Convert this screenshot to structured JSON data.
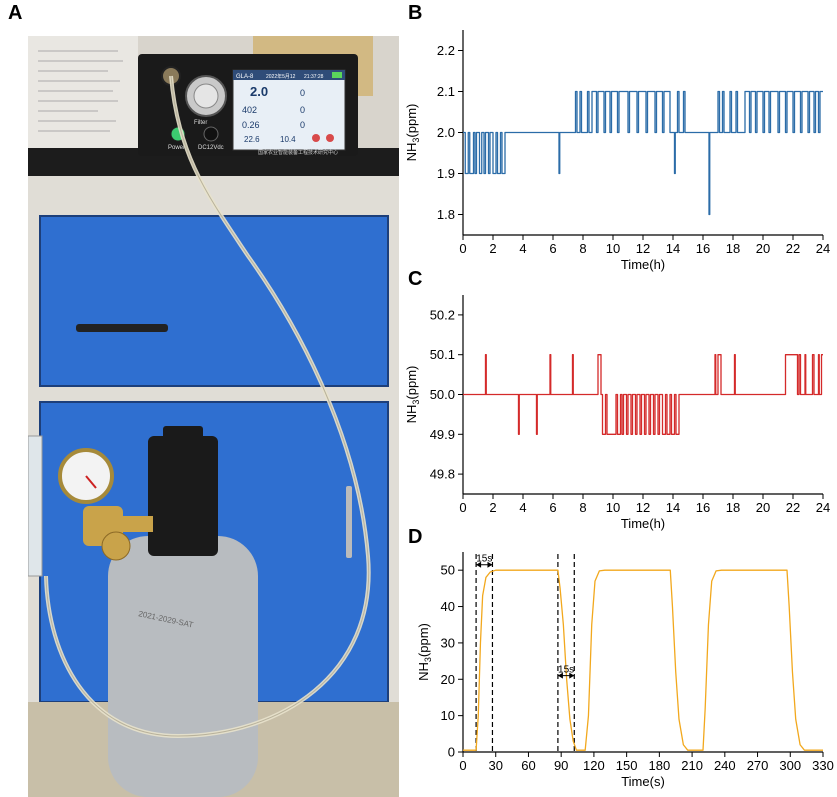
{
  "panels": {
    "a": "A",
    "b": "B",
    "c": "C",
    "d": "D"
  },
  "photo": {
    "screen_title": "GLA-8",
    "screen_date": "2022年5月12",
    "screen_time": "21:37:28",
    "main_value": "2.0",
    "co2_value": "402",
    "value_2": "0.26",
    "temp": "22.6",
    "humidity": "10.4",
    "filter_label": "Filter",
    "power_label": "Power",
    "dc_label": "DC12Vdc",
    "footer_cn": "国家农业智能装备工程技术研究中心",
    "cylinder_text": "2021-2029-SAT"
  },
  "chart_data": [
    {
      "panel": "B",
      "type": "line",
      "xlabel": "Time(h)",
      "ylabel": "NH3(ppm)",
      "ylabel_main": "NH",
      "ylabel_sub": "3",
      "ylabel_tail": "(ppm)",
      "xlim": [
        0,
        24
      ],
      "ylim": [
        1.75,
        2.25
      ],
      "xticks": [
        "0",
        "2",
        "4",
        "6",
        "8",
        "10",
        "12",
        "14",
        "16",
        "18",
        "20",
        "22",
        "24"
      ],
      "yticks": [
        "1.8",
        "1.9",
        "2.0",
        "2.1",
        "2.2"
      ],
      "color": "#2b6ca8",
      "segments": [
        [
          0.0,
          2.0
        ],
        [
          0.15,
          2.0
        ],
        [
          0.15,
          1.9
        ],
        [
          0.35,
          1.9
        ],
        [
          0.35,
          2.0
        ],
        [
          0.45,
          2.0
        ],
        [
          0.45,
          1.9
        ],
        [
          0.7,
          1.9
        ],
        [
          0.7,
          2.0
        ],
        [
          0.8,
          2.0
        ],
        [
          0.8,
          1.9
        ],
        [
          0.9,
          1.9
        ],
        [
          0.9,
          2.0
        ],
        [
          1.1,
          2.0
        ],
        [
          1.1,
          1.9
        ],
        [
          1.25,
          1.9
        ],
        [
          1.25,
          2.0
        ],
        [
          1.4,
          2.0
        ],
        [
          1.4,
          1.9
        ],
        [
          1.5,
          1.9
        ],
        [
          1.5,
          2.0
        ],
        [
          1.7,
          2.0
        ],
        [
          1.7,
          1.9
        ],
        [
          1.8,
          1.9
        ],
        [
          1.8,
          2.0
        ],
        [
          2.0,
          2.0
        ],
        [
          2.0,
          1.9
        ],
        [
          2.2,
          1.9
        ],
        [
          2.2,
          2.0
        ],
        [
          2.3,
          2.0
        ],
        [
          2.3,
          1.9
        ],
        [
          2.5,
          1.9
        ],
        [
          2.5,
          2.0
        ],
        [
          2.6,
          2.0
        ],
        [
          2.6,
          1.9
        ],
        [
          2.8,
          1.9
        ],
        [
          2.8,
          2.0
        ],
        [
          6.4,
          2.0
        ],
        [
          6.4,
          1.9
        ],
        [
          6.45,
          1.9
        ],
        [
          6.45,
          2.0
        ],
        [
          7.5,
          2.0
        ],
        [
          7.5,
          2.1
        ],
        [
          7.6,
          2.1
        ],
        [
          7.6,
          2.0
        ],
        [
          7.8,
          2.0
        ],
        [
          7.8,
          2.1
        ],
        [
          7.9,
          2.1
        ],
        [
          7.9,
          2.0
        ],
        [
          8.3,
          2.0
        ],
        [
          8.3,
          2.1
        ],
        [
          8.4,
          2.1
        ],
        [
          8.4,
          2.0
        ],
        [
          8.6,
          2.0
        ],
        [
          8.6,
          2.1
        ],
        [
          8.9,
          2.1
        ],
        [
          8.9,
          2.0
        ],
        [
          9.0,
          2.0
        ],
        [
          9.0,
          2.1
        ],
        [
          9.4,
          2.1
        ],
        [
          9.4,
          2.0
        ],
        [
          9.5,
          2.0
        ],
        [
          9.5,
          2.1
        ],
        [
          9.8,
          2.1
        ],
        [
          9.8,
          2.0
        ],
        [
          9.9,
          2.0
        ],
        [
          9.9,
          2.1
        ],
        [
          10.3,
          2.1
        ],
        [
          10.3,
          2.0
        ],
        [
          10.4,
          2.0
        ],
        [
          10.4,
          2.1
        ],
        [
          11.0,
          2.1
        ],
        [
          11.0,
          2.0
        ],
        [
          11.1,
          2.0
        ],
        [
          11.1,
          2.1
        ],
        [
          11.6,
          2.1
        ],
        [
          11.6,
          2.0
        ],
        [
          11.7,
          2.0
        ],
        [
          11.7,
          2.1
        ],
        [
          12.2,
          2.1
        ],
        [
          12.2,
          2.0
        ],
        [
          12.3,
          2.0
        ],
        [
          12.3,
          2.1
        ],
        [
          12.8,
          2.1
        ],
        [
          12.8,
          2.0
        ],
        [
          12.9,
          2.0
        ],
        [
          12.9,
          2.1
        ],
        [
          13.3,
          2.1
        ],
        [
          13.3,
          2.0
        ],
        [
          13.4,
          2.0
        ],
        [
          13.4,
          2.1
        ],
        [
          13.8,
          2.1
        ],
        [
          13.8,
          2.0
        ],
        [
          14.1,
          2.0
        ],
        [
          14.1,
          1.9
        ],
        [
          14.15,
          1.9
        ],
        [
          14.15,
          2.0
        ],
        [
          14.3,
          2.0
        ],
        [
          14.3,
          2.1
        ],
        [
          14.4,
          2.1
        ],
        [
          14.4,
          2.0
        ],
        [
          14.7,
          2.0
        ],
        [
          14.7,
          2.1
        ],
        [
          14.8,
          2.1
        ],
        [
          14.8,
          2.0
        ],
        [
          16.4,
          2.0
        ],
        [
          16.4,
          1.8
        ],
        [
          16.45,
          1.8
        ],
        [
          16.45,
          2.0
        ],
        [
          17.0,
          2.0
        ],
        [
          17.0,
          2.1
        ],
        [
          17.1,
          2.1
        ],
        [
          17.1,
          2.0
        ],
        [
          17.3,
          2.0
        ],
        [
          17.3,
          2.1
        ],
        [
          17.4,
          2.1
        ],
        [
          17.4,
          2.0
        ],
        [
          17.8,
          2.0
        ],
        [
          17.8,
          2.1
        ],
        [
          17.9,
          2.1
        ],
        [
          17.9,
          2.0
        ],
        [
          18.2,
          2.0
        ],
        [
          18.2,
          2.1
        ],
        [
          18.3,
          2.1
        ],
        [
          18.3,
          2.0
        ],
        [
          18.8,
          2.0
        ],
        [
          18.8,
          2.1
        ],
        [
          19.1,
          2.1
        ],
        [
          19.1,
          2.0
        ],
        [
          19.2,
          2.0
        ],
        [
          19.2,
          2.1
        ],
        [
          19.5,
          2.1
        ],
        [
          19.5,
          2.0
        ],
        [
          19.6,
          2.0
        ],
        [
          19.6,
          2.1
        ],
        [
          20.0,
          2.1
        ],
        [
          20.0,
          2.0
        ],
        [
          20.1,
          2.0
        ],
        [
          20.1,
          2.1
        ],
        [
          20.4,
          2.1
        ],
        [
          20.4,
          2.0
        ],
        [
          20.5,
          2.0
        ],
        [
          20.5,
          2.1
        ],
        [
          21.0,
          2.1
        ],
        [
          21.0,
          2.0
        ],
        [
          21.1,
          2.0
        ],
        [
          21.1,
          2.1
        ],
        [
          21.5,
          2.1
        ],
        [
          21.5,
          2.0
        ],
        [
          21.6,
          2.0
        ],
        [
          21.6,
          2.1
        ],
        [
          22.0,
          2.1
        ],
        [
          22.0,
          2.0
        ],
        [
          22.1,
          2.0
        ],
        [
          22.1,
          2.1
        ],
        [
          22.5,
          2.1
        ],
        [
          22.5,
          2.0
        ],
        [
          22.6,
          2.0
        ],
        [
          22.6,
          2.1
        ],
        [
          23.0,
          2.1
        ],
        [
          23.0,
          2.0
        ],
        [
          23.1,
          2.0
        ],
        [
          23.1,
          2.1
        ],
        [
          23.4,
          2.1
        ],
        [
          23.4,
          2.0
        ],
        [
          23.5,
          2.0
        ],
        [
          23.5,
          2.1
        ],
        [
          23.7,
          2.1
        ],
        [
          23.7,
          2.0
        ],
        [
          23.8,
          2.0
        ],
        [
          23.8,
          2.1
        ],
        [
          24.0,
          2.1
        ]
      ]
    },
    {
      "panel": "C",
      "type": "line",
      "xlabel": "Time(h)",
      "ylabel": "NH3(ppm)",
      "ylabel_main": "NH",
      "ylabel_sub": "3",
      "ylabel_tail": "(ppm)",
      "xlim": [
        0,
        24
      ],
      "ylim": [
        49.75,
        50.25
      ],
      "xticks": [
        "0",
        "2",
        "4",
        "6",
        "8",
        "10",
        "12",
        "14",
        "16",
        "18",
        "20",
        "22",
        "24"
      ],
      "yticks": [
        "49.8",
        "49.9",
        "50.0",
        "50.1",
        "50.2"
      ],
      "color": "#d42a2a",
      "segments": [
        [
          0.0,
          50.0
        ],
        [
          1.5,
          50.0
        ],
        [
          1.5,
          50.1
        ],
        [
          1.55,
          50.1
        ],
        [
          1.55,
          50.0
        ],
        [
          3.7,
          50.0
        ],
        [
          3.7,
          49.9
        ],
        [
          3.75,
          49.9
        ],
        [
          3.75,
          50.0
        ],
        [
          4.9,
          50.0
        ],
        [
          4.9,
          49.9
        ],
        [
          4.95,
          49.9
        ],
        [
          4.95,
          50.0
        ],
        [
          5.8,
          50.0
        ],
        [
          5.8,
          50.1
        ],
        [
          5.85,
          50.1
        ],
        [
          5.85,
          50.0
        ],
        [
          7.3,
          50.0
        ],
        [
          7.3,
          50.1
        ],
        [
          7.35,
          50.1
        ],
        [
          7.35,
          50.0
        ],
        [
          9.0,
          50.0
        ],
        [
          9.0,
          50.1
        ],
        [
          9.2,
          50.1
        ],
        [
          9.2,
          50.0
        ],
        [
          9.3,
          50.0
        ],
        [
          9.3,
          49.9
        ],
        [
          9.5,
          49.9
        ],
        [
          9.5,
          50.0
        ],
        [
          9.6,
          50.0
        ],
        [
          9.6,
          49.9
        ],
        [
          10.2,
          49.9
        ],
        [
          10.2,
          50.0
        ],
        [
          10.3,
          50.0
        ],
        [
          10.3,
          49.9
        ],
        [
          10.5,
          49.9
        ],
        [
          10.5,
          50.0
        ],
        [
          10.6,
          50.0
        ],
        [
          10.6,
          49.9
        ],
        [
          10.7,
          49.9
        ],
        [
          10.7,
          50.0
        ],
        [
          10.9,
          50.0
        ],
        [
          10.9,
          49.9
        ],
        [
          11.0,
          49.9
        ],
        [
          11.0,
          50.0
        ],
        [
          11.2,
          50.0
        ],
        [
          11.2,
          49.9
        ],
        [
          11.3,
          49.9
        ],
        [
          11.3,
          50.0
        ],
        [
          11.5,
          50.0
        ],
        [
          11.5,
          49.9
        ],
        [
          11.6,
          49.9
        ],
        [
          11.6,
          50.0
        ],
        [
          11.8,
          50.0
        ],
        [
          11.8,
          49.9
        ],
        [
          11.9,
          49.9
        ],
        [
          11.9,
          50.0
        ],
        [
          12.1,
          50.0
        ],
        [
          12.1,
          49.9
        ],
        [
          12.2,
          49.9
        ],
        [
          12.2,
          50.0
        ],
        [
          12.4,
          50.0
        ],
        [
          12.4,
          49.9
        ],
        [
          12.5,
          49.9
        ],
        [
          12.5,
          50.0
        ],
        [
          12.7,
          50.0
        ],
        [
          12.7,
          49.9
        ],
        [
          12.8,
          49.9
        ],
        [
          12.8,
          50.0
        ],
        [
          13.0,
          50.0
        ],
        [
          13.0,
          49.9
        ],
        [
          13.1,
          49.9
        ],
        [
          13.1,
          50.0
        ],
        [
          13.3,
          50.0
        ],
        [
          13.3,
          49.9
        ],
        [
          13.5,
          49.9
        ],
        [
          13.5,
          50.0
        ],
        [
          13.6,
          50.0
        ],
        [
          13.6,
          49.9
        ],
        [
          13.8,
          49.9
        ],
        [
          13.8,
          50.0
        ],
        [
          13.9,
          50.0
        ],
        [
          13.9,
          49.9
        ],
        [
          14.1,
          49.9
        ],
        [
          14.1,
          50.0
        ],
        [
          14.2,
          50.0
        ],
        [
          14.2,
          49.9
        ],
        [
          14.4,
          49.9
        ],
        [
          14.4,
          50.0
        ],
        [
          16.8,
          50.0
        ],
        [
          16.8,
          50.1
        ],
        [
          16.85,
          50.1
        ],
        [
          16.85,
          50.0
        ],
        [
          17.0,
          50.0
        ],
        [
          17.0,
          50.1
        ],
        [
          17.2,
          50.1
        ],
        [
          17.2,
          50.0
        ],
        [
          18.1,
          50.0
        ],
        [
          18.1,
          50.1
        ],
        [
          18.15,
          50.1
        ],
        [
          18.15,
          50.0
        ],
        [
          21.5,
          50.0
        ],
        [
          21.5,
          50.1
        ],
        [
          22.3,
          50.1
        ],
        [
          22.3,
          50.0
        ],
        [
          22.4,
          50.0
        ],
        [
          22.4,
          50.1
        ],
        [
          22.5,
          50.1
        ],
        [
          22.5,
          50.0
        ],
        [
          22.8,
          50.0
        ],
        [
          22.8,
          50.1
        ],
        [
          22.85,
          50.1
        ],
        [
          22.85,
          50.0
        ],
        [
          23.3,
          50.0
        ],
        [
          23.3,
          50.1
        ],
        [
          23.4,
          50.1
        ],
        [
          23.4,
          50.0
        ],
        [
          23.7,
          50.0
        ],
        [
          23.7,
          50.1
        ],
        [
          23.75,
          50.1
        ],
        [
          23.75,
          50.0
        ],
        [
          23.9,
          50.0
        ],
        [
          23.9,
          50.1
        ],
        [
          24.0,
          50.1
        ]
      ]
    },
    {
      "panel": "D",
      "type": "line",
      "xlabel": "Time(s)",
      "ylabel": "NH3(ppm)",
      "ylabel_main": "NH",
      "ylabel_sub": "3",
      "ylabel_tail": "(ppm)",
      "xlim": [
        0,
        330
      ],
      "ylim": [
        0,
        55
      ],
      "xticks": [
        "0",
        "30",
        "60",
        "90",
        "120",
        "150",
        "180",
        "210",
        "240",
        "270",
        "300",
        "330"
      ],
      "yticks": [
        "0",
        "10",
        "20",
        "30",
        "40",
        "50"
      ],
      "color": "#f2a81d",
      "segments": [
        [
          0,
          0.5
        ],
        [
          12,
          0.5
        ],
        [
          14,
          10
        ],
        [
          16,
          30
        ],
        [
          18,
          43
        ],
        [
          21,
          48
        ],
        [
          25,
          49.5
        ],
        [
          30,
          50
        ],
        [
          87,
          50
        ],
        [
          89,
          45
        ],
        [
          92,
          35
        ],
        [
          95,
          20
        ],
        [
          98,
          9
        ],
        [
          101,
          3
        ],
        [
          104,
          0.5
        ],
        [
          112,
          0.5
        ],
        [
          115,
          10
        ],
        [
          118,
          35
        ],
        [
          121,
          47
        ],
        [
          125,
          49.8
        ],
        [
          130,
          50
        ],
        [
          190,
          50
        ],
        [
          192,
          40
        ],
        [
          195,
          22
        ],
        [
          198,
          9
        ],
        [
          202,
          2
        ],
        [
          206,
          0.5
        ],
        [
          220,
          0.5
        ],
        [
          222,
          12
        ],
        [
          225,
          35
        ],
        [
          228,
          47
        ],
        [
          232,
          49.8
        ],
        [
          237,
          50
        ],
        [
          297,
          50
        ],
        [
          299,
          40
        ],
        [
          302,
          22
        ],
        [
          305,
          9
        ],
        [
          309,
          2
        ],
        [
          313,
          0.5
        ],
        [
          330,
          0.5
        ]
      ],
      "annotations": [
        {
          "label": "15s",
          "x1": 12,
          "x2": 27,
          "y": 51.5
        },
        {
          "label": "15s",
          "x1": 87,
          "x2": 102,
          "y": 21
        }
      ],
      "vlines": [
        12,
        27,
        87,
        102
      ]
    }
  ]
}
